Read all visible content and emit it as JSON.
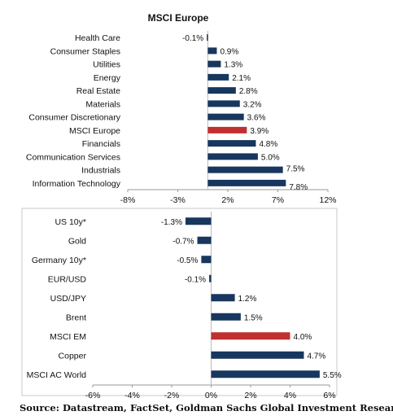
{
  "chart_data": [
    {
      "type": "bar",
      "orientation": "horizontal",
      "title": "MSCI Europe",
      "categories": [
        "Health Care",
        "Consumer Staples",
        "Utilities",
        "Energy",
        "Real Estate",
        "Materials",
        "Consumer Discretionary",
        "MSCI Europe",
        "Financials",
        "Communication Services",
        "Industrials",
        "Information Technology"
      ],
      "values": [
        -0.1,
        0.9,
        1.3,
        2.1,
        2.8,
        3.2,
        3.6,
        3.9,
        4.8,
        5.0,
        7.5,
        7.8
      ],
      "value_labels": [
        "-0.1%",
        "0.9%",
        "1.3%",
        "2.1%",
        "2.8%",
        "3.2%",
        "3.6%",
        "3.9%",
        "4.8%",
        "5.0%",
        "7.5%",
        "7.8%"
      ],
      "highlight": [
        "MSCI Europe"
      ],
      "xlim": [
        -8,
        12
      ],
      "xticks": [
        -8,
        -3,
        2,
        7,
        12
      ],
      "xtick_labels": [
        "-8%",
        "-3%",
        "2%",
        "7%",
        "12%"
      ],
      "bar_color": "#17375e",
      "highlight_color": "#c0302f"
    },
    {
      "type": "bar",
      "orientation": "horizontal",
      "title": "",
      "categories": [
        "US 10y*",
        "Gold",
        "Germany 10y*",
        "EUR/USD",
        "USD/JPY",
        "Brent",
        "MSCI EM",
        "Copper",
        "MSCI AC World"
      ],
      "values": [
        -1.3,
        -0.7,
        -0.5,
        -0.1,
        1.2,
        1.5,
        4.0,
        4.7,
        5.5
      ],
      "value_labels": [
        "-1.3%",
        "-0.7%",
        "-0.5%",
        "-0.1%",
        "1.2%",
        "1.5%",
        "4.0%",
        "4.7%",
        "5.5%"
      ],
      "highlight": [
        "MSCI EM"
      ],
      "xlim": [
        -6,
        6
      ],
      "xticks": [
        -6,
        -4,
        -2,
        0,
        2,
        4,
        6
      ],
      "xtick_labels": [
        "-6%",
        "-4%",
        "-2%",
        "0%",
        "2%",
        "4%",
        "6%"
      ],
      "bar_color": "#17375e",
      "highlight_color": "#c0302f"
    }
  ],
  "source": "Source: Datastream, FactSet, Goldman Sachs Global Investment Research"
}
